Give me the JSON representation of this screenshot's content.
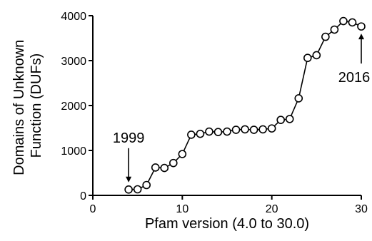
{
  "chart_data": {
    "type": "line",
    "title": "",
    "xlabel": "Pfam version (4.0 to 30.0)",
    "ylabel_lines": [
      "Domains of Unknown",
      "Function (DUFs)"
    ],
    "xlim": [
      0,
      30
    ],
    "ylim": [
      0,
      4000
    ],
    "xticks": [
      0,
      10,
      20,
      30
    ],
    "yticks": [
      0,
      1000,
      2000,
      3000,
      4000
    ],
    "grid": false,
    "marker": "open-circle",
    "x": [
      4,
      5,
      6,
      7,
      8,
      9,
      10,
      11,
      12,
      13,
      14,
      15,
      16,
      17,
      18,
      19,
      20,
      21,
      22,
      23,
      24,
      25,
      26,
      27,
      28,
      29,
      30
    ],
    "y": [
      130,
      135,
      230,
      620,
      610,
      720,
      920,
      1350,
      1370,
      1420,
      1410,
      1420,
      1460,
      1470,
      1460,
      1470,
      1490,
      1680,
      1700,
      2160,
      3060,
      3120,
      3530,
      3690,
      3880,
      3850,
      3760
    ],
    "annotations": [
      {
        "text": "1999",
        "x": 4,
        "y": 130,
        "position": "above"
      },
      {
        "text": "2016",
        "x": 30,
        "y": 3760,
        "position": "below"
      }
    ]
  }
}
